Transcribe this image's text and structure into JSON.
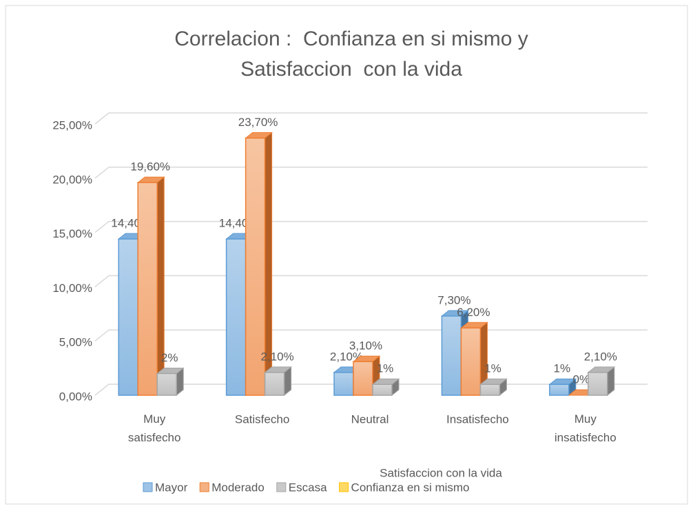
{
  "chart_data": {
    "type": "bar3d",
    "title": [
      "Correlacion :  Confianza en si mismo y",
      "Satisfaccion  con la vida"
    ],
    "x_label": "Satisfaccion con la vida",
    "categories": [
      "Muy satisfecho",
      "Satisfecho",
      "Neutral",
      "Insatisfecho",
      "Muy insatisfecho"
    ],
    "series": [
      {
        "name": "Mayor",
        "color": "#5b9bd5",
        "values": [
          14.4,
          14.4,
          2.1,
          7.3,
          1
        ],
        "value_labels": [
          "14,40%",
          "14,40%",
          "2,10%",
          "7,30%",
          "1%"
        ]
      },
      {
        "name": "Moderado",
        "color": "#ed7d31",
        "values": [
          19.6,
          23.7,
          3.1,
          6.2,
          0
        ],
        "value_labels": [
          "19,60%",
          "23,70%",
          "3,10%",
          "6,20%",
          "0%"
        ]
      },
      {
        "name": "Escasa",
        "color": "#a5a5a5",
        "values": [
          2,
          2.1,
          1,
          1,
          2.1
        ],
        "value_labels": [
          "2%",
          "2,10%",
          "1%",
          "1%",
          "2,10%"
        ]
      },
      {
        "name": "Confianza en si mismo",
        "color": "#ffc000",
        "values": [
          null,
          null,
          null,
          null,
          null
        ]
      }
    ],
    "ylim": [
      0,
      25
    ],
    "yticks": [
      {
        "value": 0,
        "label": "0,00%"
      },
      {
        "value": 5,
        "label": "5,00%"
      },
      {
        "value": 10,
        "label": "10,00%"
      },
      {
        "value": 15,
        "label": "15,00%"
      },
      {
        "value": 20,
        "label": "20,00%"
      },
      {
        "value": 25,
        "label": "25,00%"
      }
    ],
    "grid": true,
    "legend": "bottom"
  }
}
